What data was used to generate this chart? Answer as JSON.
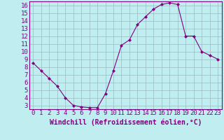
{
  "x": [
    0,
    1,
    2,
    3,
    4,
    5,
    6,
    7,
    8,
    9,
    10,
    11,
    12,
    13,
    14,
    15,
    16,
    17,
    18,
    19,
    20,
    21,
    22,
    23
  ],
  "y": [
    8.5,
    7.5,
    6.5,
    5.5,
    4.0,
    3.0,
    2.8,
    2.7,
    2.7,
    4.5,
    7.5,
    10.8,
    11.5,
    13.5,
    14.5,
    15.5,
    16.1,
    16.3,
    16.1,
    12.0,
    12.0,
    10.0,
    9.5,
    9.0
  ],
  "line_color": "#800080",
  "marker": "D",
  "marker_size": 2,
  "bg_color": "#c0eef0",
  "grid_color": "#9db8c0",
  "xlabel": "Windchill (Refroidissement éolien,°C)",
  "ylim_min": 2.5,
  "ylim_max": 16.5,
  "yticks": [
    3,
    4,
    5,
    6,
    7,
    8,
    9,
    10,
    11,
    12,
    13,
    14,
    15,
    16
  ],
  "xlim_min": -0.5,
  "xlim_max": 23.5,
  "xticks": [
    0,
    1,
    2,
    3,
    4,
    5,
    6,
    7,
    8,
    9,
    10,
    11,
    12,
    13,
    14,
    15,
    16,
    17,
    18,
    19,
    20,
    21,
    22,
    23
  ],
  "tick_color": "#800080",
  "label_color": "#800080",
  "font_size": 6.5,
  "xlabel_fontsize": 7.0
}
